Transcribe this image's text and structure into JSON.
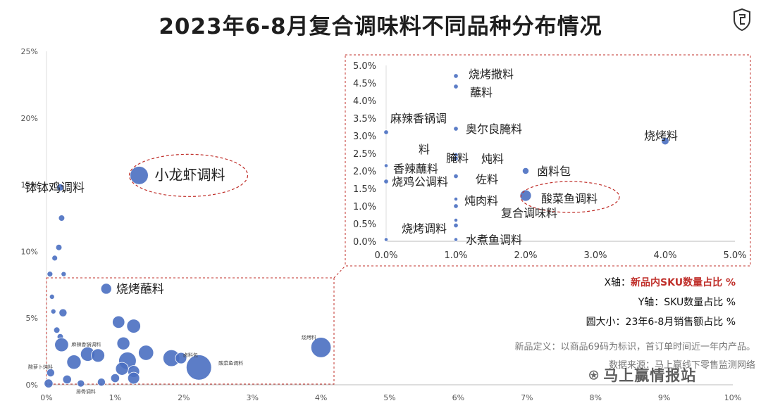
{
  "title": "2023年6-8月复合调味料不同品种分布情况",
  "legend": {
    "x_label_prefix": "X轴：",
    "x_label_value": "新品内SKU数量占比 %",
    "y_label": "Y轴：SKU数量占比 %",
    "size_label": "圆大小：23年6-8月销售额占比 %"
  },
  "definition": "新品定义：以商品69码为标识，首订单时间近一年内产品。",
  "source": "数据来源：马上赢线下零售监测网络",
  "watermark": "马上赢情报站",
  "colors": {
    "point": "#4a6fc1",
    "dashed": "#c0302b",
    "highlight_text": "#c0302b"
  },
  "chart_data": [
    {
      "type": "scatter",
      "title": "2023年6-8月复合调味料不同品种分布情况",
      "xlabel": "新品内SKU数量占比 %",
      "ylabel": "SKU数量占比 %",
      "size_label": "23年6-8月销售额占比 %",
      "xlim": [
        0,
        10
      ],
      "ylim": [
        0,
        25
      ],
      "x_ticks": [
        "0%",
        "1%",
        "2%",
        "3%",
        "4%",
        "5%",
        "6%",
        "7%",
        "8%",
        "9%",
        "10%"
      ],
      "y_ticks": [
        "0%",
        "5%",
        "10%",
        "15%",
        "20%",
        "25%"
      ],
      "points": [
        {
          "label": "小龙虾调料",
          "x": 1.35,
          "y": 15.7,
          "size": 2.6,
          "highlight": true
        },
        {
          "label": "钵钵鸡调料",
          "x": 0.2,
          "y": 14.8,
          "size": 0.4
        },
        {
          "label": "",
          "x": 0.22,
          "y": 12.5,
          "size": 0.3
        },
        {
          "label": "",
          "x": 0.18,
          "y": 10.3,
          "size": 0.3
        },
        {
          "label": "",
          "x": 0.12,
          "y": 9.5,
          "size": 0.25
        },
        {
          "label": "",
          "x": 0.05,
          "y": 8.3,
          "size": 0.25
        },
        {
          "label": "",
          "x": 0.25,
          "y": 8.3,
          "size": 0.2
        },
        {
          "label": "烧烤蘸料",
          "x": 0.87,
          "y": 7.2,
          "size": 0.9
        },
        {
          "label": "",
          "x": 0.08,
          "y": 6.6,
          "size": 0.2
        },
        {
          "label": "",
          "x": 0.24,
          "y": 5.4,
          "size": 0.5
        },
        {
          "label": "",
          "x": 0.1,
          "y": 5.5,
          "size": 0.2
        },
        {
          "label": "",
          "x": 1.05,
          "y": 4.7,
          "size": 1.2
        },
        {
          "label": "",
          "x": 1.27,
          "y": 4.4,
          "size": 1.5
        },
        {
          "label": "",
          "x": 0.15,
          "y": 4.1,
          "size": 0.3
        },
        {
          "label": "",
          "x": 0.2,
          "y": 3.6,
          "size": 0.3
        },
        {
          "label": "烧烤料",
          "x": 4.0,
          "y": 2.8,
          "size": 3.2
        },
        {
          "label": "麻辣香锅调料",
          "x": 0.22,
          "y": 3.0,
          "size": 1.5
        },
        {
          "label": "",
          "x": 1.12,
          "y": 3.1,
          "size": 1.3
        },
        {
          "label": "",
          "x": 0.6,
          "y": 2.3,
          "size": 1.6
        },
        {
          "label": "",
          "x": 0.75,
          "y": 2.2,
          "size": 1.4
        },
        {
          "label": "",
          "x": 1.45,
          "y": 2.4,
          "size": 1.8
        },
        {
          "label": "",
          "x": 1.18,
          "y": 1.8,
          "size": 2.4
        },
        {
          "label": "",
          "x": 1.82,
          "y": 2.0,
          "size": 2.2
        },
        {
          "label": "",
          "x": 0.4,
          "y": 1.7,
          "size": 1.6
        },
        {
          "label": "",
          "x": 1.27,
          "y": 1.0,
          "size": 1.1
        },
        {
          "label": "",
          "x": 1.1,
          "y": 1.2,
          "size": 1.3
        },
        {
          "label": "卤料包",
          "x": 1.96,
          "y": 2.0,
          "size": 1.0
        },
        {
          "label": "酸菜鱼调料",
          "x": 2.22,
          "y": 1.3,
          "size": 5.0
        },
        {
          "label": "",
          "x": 1.27,
          "y": 0.5,
          "size": 1.1
        },
        {
          "label": "",
          "x": 1.0,
          "y": 0.5,
          "size": 0.6
        },
        {
          "label": "",
          "x": 0.06,
          "y": 0.9,
          "size": 0.5
        },
        {
          "label": "",
          "x": 0.3,
          "y": 0.4,
          "size": 0.6
        },
        {
          "label": "",
          "x": 0.8,
          "y": 0.2,
          "size": 0.5
        },
        {
          "label": "",
          "x": 0.03,
          "y": 0.1,
          "size": 0.6
        },
        {
          "label": "",
          "x": 0.5,
          "y": 0.1,
          "size": 0.4
        }
      ],
      "small_labels": [
        "烧烤料",
        "麻辣香锅调料",
        "酸菜鱼调料",
        "卤料包",
        "排骨调料",
        "酸萝卜炖料"
      ]
    },
    {
      "type": "scatter",
      "inset": true,
      "xlim": [
        0,
        5
      ],
      "ylim": [
        0,
        5
      ],
      "x_ticks": [
        "0.0%",
        "1.0%",
        "2.0%",
        "3.0%",
        "4.0%",
        "5.0%"
      ],
      "y_ticks": [
        "0.0%",
        "0.5%",
        "1.0%",
        "1.5%",
        "2.0%",
        "2.5%",
        "3.0%",
        "3.5%",
        "4.0%",
        "4.5%",
        "5.0%"
      ],
      "points": [
        {
          "label": "烧烤撒料",
          "x": 1.0,
          "y": 4.7,
          "size": 0.3
        },
        {
          "label": "蘸料",
          "x": 1.0,
          "y": 4.4,
          "size": 0.3
        },
        {
          "label": "麻辣香锅调料",
          "x": 0.0,
          "y": 3.1,
          "size": 0.3
        },
        {
          "label": "奥尔良腌料",
          "x": 1.0,
          "y": 3.2,
          "size": 0.3
        },
        {
          "label": "烧烤料",
          "x": 4.0,
          "y": 2.85,
          "size": 0.8
        },
        {
          "label": "腌料",
          "x": 1.0,
          "y": 2.45,
          "size": 0.3
        },
        {
          "label": "炖料",
          "x": 1.0,
          "y": 2.35,
          "size": 0.3
        },
        {
          "label": "香辣蘸料",
          "x": 0.0,
          "y": 2.15,
          "size": 0.2
        },
        {
          "label": "佐料",
          "x": 1.0,
          "y": 1.85,
          "size": 0.3
        },
        {
          "label": "卤料包",
          "x": 2.0,
          "y": 2.0,
          "size": 0.6
        },
        {
          "label": "烧鸡公调料",
          "x": 0.0,
          "y": 1.7,
          "size": 0.3
        },
        {
          "label": "酸菜鱼调料",
          "x": 2.0,
          "y": 1.3,
          "size": 1.8,
          "highlight": true
        },
        {
          "label": "炖肉料",
          "x": 1.0,
          "y": 1.0,
          "size": 0.3
        },
        {
          "label": "",
          "x": 1.0,
          "y": 1.2,
          "size": 0.2
        },
        {
          "label": "",
          "x": 1.0,
          "y": 0.6,
          "size": 0.2
        },
        {
          "label": "复合调味料",
          "x": 1.0,
          "y": 0.45,
          "size": 0.3
        },
        {
          "label": "烧烤调料",
          "x": 0.0,
          "y": 0.05,
          "size": 0.2
        },
        {
          "label": "水煮鱼调料",
          "x": 1.0,
          "y": 0.05,
          "size": 0.2
        }
      ]
    }
  ]
}
